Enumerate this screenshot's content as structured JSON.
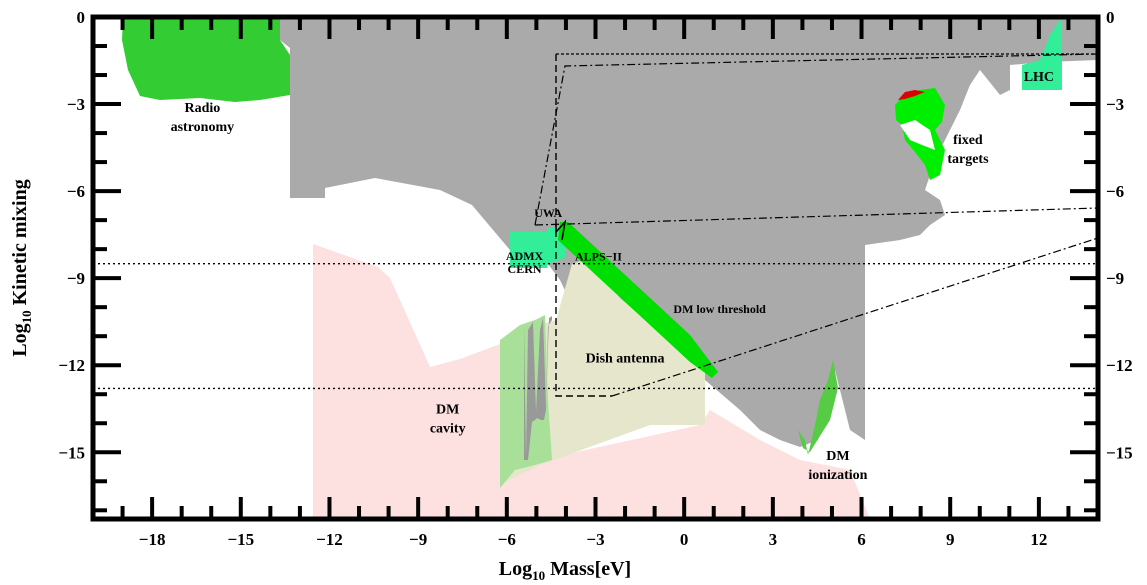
{
  "chart_data": {
    "type": "area",
    "title": "",
    "xlabel": {
      "prefix": "Log",
      "sub": "10",
      "rest": " Mass[eV]"
    },
    "ylabel": {
      "prefix": "Log",
      "sub": "10",
      "rest": " Kinetic mixing"
    },
    "xlim": [
      -20,
      14
    ],
    "ylim": [
      -17.3,
      0
    ],
    "x_ticks": [
      -18,
      -15,
      -12,
      -9,
      -6,
      -3,
      0,
      3,
      6,
      9,
      12
    ],
    "y_ticks": [
      0,
      -3,
      -6,
      -9,
      -12,
      -15
    ],
    "y_tick_labels": [
      "0",
      "−3",
      "−6",
      "−9",
      "−12",
      "−15"
    ],
    "x_tick_labels": [
      "−18",
      "−15",
      "−12",
      "−9",
      "−6",
      "−3",
      "0",
      "3",
      "6",
      "9",
      "12"
    ],
    "regions": [
      {
        "name": "Radio astronomy",
        "label_lines": [
          "Radio",
          "astronomy"
        ],
        "color": "#33cc33",
        "label_at": [
          -16.3,
          -3.6
        ]
      },
      {
        "name": "LHC",
        "label_lines": [
          "LHC"
        ],
        "color": "#33ee99",
        "label_at": [
          12.0,
          -2.2
        ]
      },
      {
        "name": "fixed targets",
        "label_lines": [
          "fixed",
          "targets"
        ],
        "color": "#00ee00",
        "label_at": [
          9.6,
          -4.7
        ]
      },
      {
        "name": "UWA",
        "label_lines": [
          "UWA"
        ],
        "color": "#000000",
        "label_at": [
          -4.6,
          -6.9
        ]
      },
      {
        "name": "ADMX CERN",
        "label_lines": [
          "ADMX",
          "CERN"
        ],
        "color": "#33ee99",
        "label_at": [
          -5.4,
          -8.6
        ]
      },
      {
        "name": "ALPS-II",
        "label_lines": [
          "ALPS−II"
        ],
        "color": "#000000",
        "label_at": [
          -2.9,
          -8.4
        ]
      },
      {
        "name": "DM low threshold",
        "label_lines": [
          "DM low threshold"
        ],
        "color": "#00dd00",
        "label_at": [
          1.2,
          -10.2
        ]
      },
      {
        "name": "Dish antenna",
        "label_lines": [
          "Dish antenna"
        ],
        "color": "#e6e6cc",
        "label_at": [
          -2.0,
          -11.9
        ]
      },
      {
        "name": "DM cavity",
        "label_lines": [
          "DM",
          "cavity"
        ],
        "color": "#99dd88",
        "label_at": [
          -8.0,
          -14.0
        ]
      },
      {
        "name": "DM ionization",
        "label_lines": [
          "DM",
          "ionization"
        ],
        "color": "#55cc44",
        "label_at": [
          5.2,
          -15.6
        ]
      }
    ],
    "dotted_lines_y": [
      -8.5,
      -12.8
    ],
    "colors": {
      "excluded": "#aaaaaa",
      "pink": "#fde0e0",
      "red": "#dd0000"
    }
  }
}
